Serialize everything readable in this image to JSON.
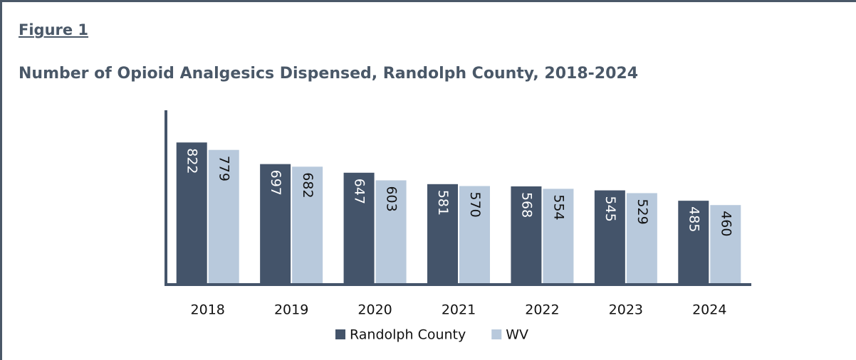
{
  "figure_label": "Figure 1",
  "chart_data": {
    "type": "bar",
    "title": "Number of Opioid Analgesics Dispensed, Randolph County, 2018-2024",
    "categories": [
      "2018",
      "2019",
      "2020",
      "2021",
      "2022",
      "2023",
      "2024"
    ],
    "series": [
      {
        "name": "Randolph County",
        "color": "#44546a",
        "values": [
          822,
          697,
          647,
          581,
          568,
          545,
          485
        ]
      },
      {
        "name": "WV",
        "color": "#b8c9dc",
        "values": [
          779,
          682,
          603,
          570,
          554,
          529,
          460
        ]
      }
    ],
    "ylim": [
      0,
      1000
    ],
    "legend": "bottom"
  }
}
